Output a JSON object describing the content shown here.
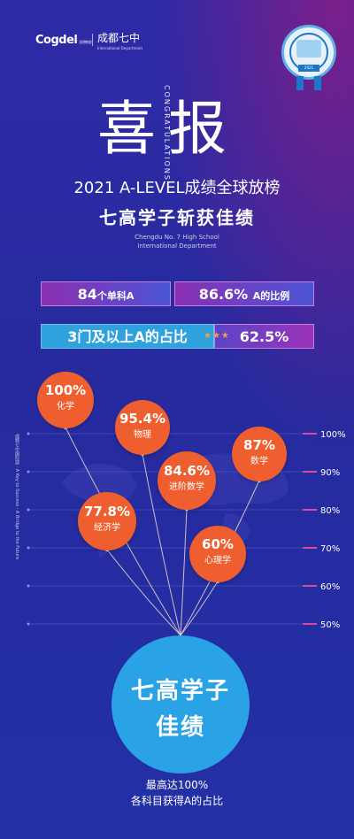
{
  "logos": {
    "left_brand": "Cogdel",
    "left_brand_sub": "凯德教育",
    "school_brand": "成都七中",
    "school_brand_sub": "International Department",
    "badge_text": "2021"
  },
  "hero": {
    "title": "喜报",
    "congrats": "CONGRATULATIONS",
    "headline": "2021 A-LEVEL成绩全球放榜",
    "subhead": "七高学子斩获佳绩",
    "english_line1": "Chengdu No. 7 High School",
    "english_line2": "International Department"
  },
  "stats": {
    "count_value": "84",
    "count_label": "个单科A",
    "percent_value": "86.6%",
    "percent_label": "A的比例",
    "three_label": "3门及以上A的占比",
    "three_stars": "★★★",
    "three_value": "62.5%"
  },
  "chart": {
    "side_text": "成都七中国际部 · A Key to Success · A Bridge to the Future",
    "scale": [
      "100%",
      "90%",
      "80%",
      "70%",
      "60%",
      "50%"
    ],
    "bubbles": [
      {
        "value": "100%",
        "subject": "化学",
        "level": 100
      },
      {
        "value": "95.4%",
        "subject": "物理",
        "level": 95.4
      },
      {
        "value": "87%",
        "subject": "数学",
        "level": 87
      },
      {
        "value": "84.6%",
        "subject": "进阶数学",
        "level": 84.6
      },
      {
        "value": "77.8%",
        "subject": "经济学",
        "level": 77.8
      },
      {
        "value": "60%",
        "subject": "心理学",
        "level": 60
      }
    ],
    "hub_line1": "七高学子",
    "hub_line2": "佳绩"
  },
  "footer": {
    "line1": "最高达100%",
    "line2": "各科目获得A的占比"
  },
  "colors": {
    "bubble": "#ef5e2e",
    "hub": "#29a3e6",
    "scale_tick": "#d64aa7",
    "background": "#2a2ca3"
  }
}
